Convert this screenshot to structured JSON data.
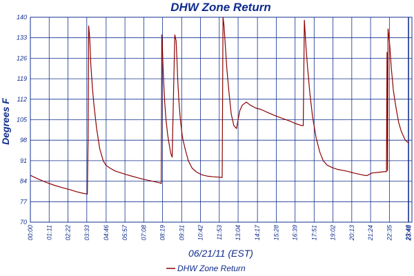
{
  "chart_data": {
    "type": "line",
    "title": "DHW Zone Return",
    "xlabel": "06/21/11 (EST)",
    "ylabel": "Degrees F",
    "ylim": [
      70,
      140
    ],
    "xlim_minutes": [
      0,
      1440
    ],
    "y_ticks": [
      "70",
      "77",
      "84",
      "91",
      "98",
      "105",
      "112",
      "119",
      "126",
      "133",
      "140"
    ],
    "x_ticks": [
      "00:00",
      "01:11",
      "02:22",
      "03:33",
      "04:46",
      "05:57",
      "07:08",
      "08:19",
      "09:31",
      "10:42",
      "11:53",
      "13:04",
      "14:17",
      "15:28",
      "16:39",
      "17:51",
      "19:02",
      "20:13",
      "21:24",
      "22:35",
      "23:46",
      "23:48"
    ],
    "x_tick_minutes": [
      0,
      71,
      142,
      213,
      286,
      357,
      428,
      499,
      571,
      642,
      713,
      784,
      857,
      928,
      999,
      1071,
      1142,
      1213,
      1284,
      1355,
      1426,
      1428
    ],
    "grid": true,
    "legend": "bottom-center",
    "colors": {
      "series": "#8b0000",
      "grid": "#0f2c8c",
      "text": "#0f2c8c"
    },
    "series": [
      {
        "name": "DHW Zone Return",
        "x": [
          0,
          30,
          60,
          90,
          120,
          150,
          175,
          197,
          215,
          218,
          220,
          224,
          228,
          234,
          240,
          250,
          262,
          275,
          285,
          300,
          320,
          340,
          360,
          380,
          400,
          420,
          440,
          460,
          480,
          490,
          494,
          496,
          498,
          500,
          503,
          507,
          512,
          518,
          525,
          530,
          535,
          545,
          550,
          553,
          556,
          560,
          566,
          574,
          584,
          596,
          610,
          626,
          640,
          650,
          670,
          690,
          710,
          720,
          724,
          727,
          731,
          736,
          742,
          750,
          758,
          768,
          778,
          790,
          800,
          815,
          830,
          850,
          870,
          895,
          920,
          950,
          980,
          1000,
          1020,
          1030,
          1034,
          1036,
          1040,
          1046,
          1055,
          1065,
          1078,
          1092,
          1105,
          1120,
          1140,
          1160,
          1185,
          1200,
          1220,
          1240,
          1260,
          1270,
          1290,
          1310,
          1330,
          1340,
          1342,
          1344,
          1346,
          1348,
          1350,
          1356,
          1362,
          1370,
          1380,
          1390,
          1400,
          1415,
          1428
        ],
        "y": [
          86,
          84.7,
          83.6,
          82.6,
          81.8,
          81.1,
          80.4,
          79.9,
          79.6,
          99,
          137,
          133,
          124,
          116,
          110,
          102,
          95,
          91,
          89.5,
          88.5,
          87.5,
          86.9,
          86.3,
          85.8,
          85.3,
          84.8,
          84.4,
          84.0,
          83.6,
          83.4,
          83.2,
          134,
          131,
          125,
          118,
          111,
          105,
          100,
          96,
          93.5,
          92.2,
          134,
          132,
          126,
          119,
          112,
          105,
          99,
          95,
          91,
          88.5,
          87.2,
          86.5,
          86.1,
          85.7,
          85.5,
          85.4,
          85.3,
          85.3,
          140,
          137,
          130,
          122,
          114,
          107,
          103,
          102,
          108,
          110,
          111,
          110,
          109,
          108.5,
          107.5,
          106.5,
          105.5,
          104.5,
          103.7,
          103.1,
          103,
          139,
          136,
          130,
          123,
          114,
          106,
          99,
          94,
          91,
          89.5,
          88.6,
          88.0,
          87.6,
          87.3,
          86.8,
          86.4,
          86.0,
          85.9,
          86.8,
          87.0,
          87.2,
          87.3,
          87.3,
          87.3,
          128,
          87.6,
          136,
          131,
          123,
          115,
          109,
          104,
          101,
          98,
          97
        ]
      }
    ]
  }
}
